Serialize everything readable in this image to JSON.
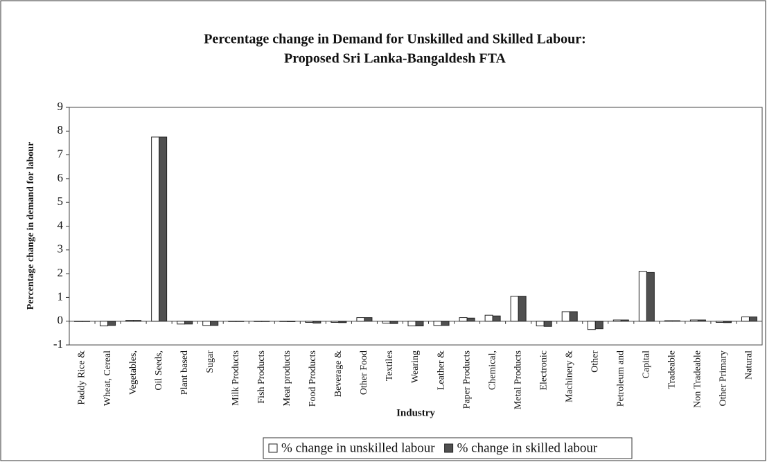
{
  "chart_data": {
    "type": "bar",
    "title": "Percentage change in Demand for Unskilled and Skilled Labour:",
    "subtitle": "Proposed Sri Lanka-Bangaldesh FTA",
    "y_label": "Percentage change in demand for labour",
    "x_label": "Industry",
    "categories": [
      "Paddy Rice &",
      "Wheat, Cereal",
      "Vegetables,",
      "Oil Seeds,",
      "Plant based",
      "Sugar",
      "Milk Products",
      "Fish Products",
      "Meat products",
      "Food Products",
      "Beverage &",
      "Other Food",
      "Textiles",
      "Wearing",
      "Leather &",
      "Paper Products",
      "Chemical,",
      "Metal Products",
      "Electronic",
      "Machinery &",
      "Other",
      "Petroleum and",
      "Capital",
      "Tradeable",
      "Non Tradeable",
      "Other Primary",
      "Natural"
    ],
    "series": [
      {
        "name": "% change in unskilled labour",
        "color": "#ffffff",
        "values": [
          0,
          -0.2,
          0.03,
          7.75,
          -0.12,
          -0.18,
          0,
          0,
          0,
          -0.05,
          -0.05,
          0.15,
          -0.08,
          -0.2,
          -0.18,
          0.15,
          0.25,
          1.05,
          -0.2,
          0.4,
          -0.35,
          0.05,
          2.1,
          0.02,
          0.05,
          -0.05,
          0.18
        ]
      },
      {
        "name": "% change in skilled labour",
        "color": "#505050",
        "values": [
          0,
          -0.18,
          0.03,
          7.75,
          -0.12,
          -0.18,
          0,
          0,
          -0.02,
          -0.08,
          -0.06,
          0.15,
          -0.1,
          -0.2,
          -0.18,
          0.13,
          0.22,
          1.05,
          -0.22,
          0.4,
          -0.32,
          0.05,
          2.05,
          0.02,
          0.05,
          -0.06,
          0.18
        ]
      }
    ],
    "ylim": [
      -1,
      9
    ],
    "yticks": [
      -1,
      0,
      1,
      2,
      3,
      4,
      5,
      6,
      7,
      8,
      9
    ],
    "grid": false,
    "legend": "bottom"
  }
}
